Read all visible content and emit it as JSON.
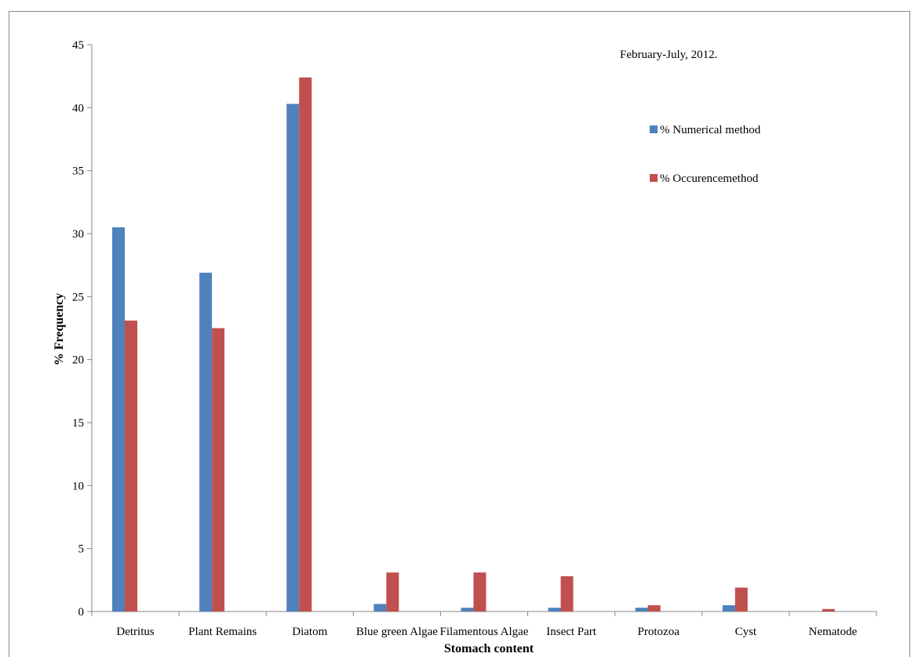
{
  "chart_data": {
    "type": "bar",
    "title": "",
    "annotation": "February-July, 2012.",
    "xlabel": "Stomach content",
    "ylabel": "% Frequency",
    "ylim": [
      0,
      45
    ],
    "yticks": [
      0,
      5,
      10,
      15,
      20,
      25,
      30,
      35,
      40,
      45
    ],
    "grid": false,
    "legend_position": "top-right",
    "categories": [
      "Detritus",
      "Plant Remains",
      "Diatom",
      "Blue green Algae",
      "Filamentous Algae",
      "Insect Part",
      "Protozoa",
      "Cyst",
      "Nematode"
    ],
    "series": [
      {
        "name": "% Numerical method",
        "color": "#4F81BD",
        "values": [
          30.5,
          26.9,
          40.3,
          0.6,
          0.3,
          0.3,
          0.3,
          0.5,
          0
        ]
      },
      {
        "name": "% Occurencemethod",
        "color": "#C0504D",
        "values": [
          23.1,
          22.5,
          42.4,
          3.1,
          3.1,
          2.8,
          0.5,
          1.9,
          0.2
        ]
      }
    ]
  }
}
